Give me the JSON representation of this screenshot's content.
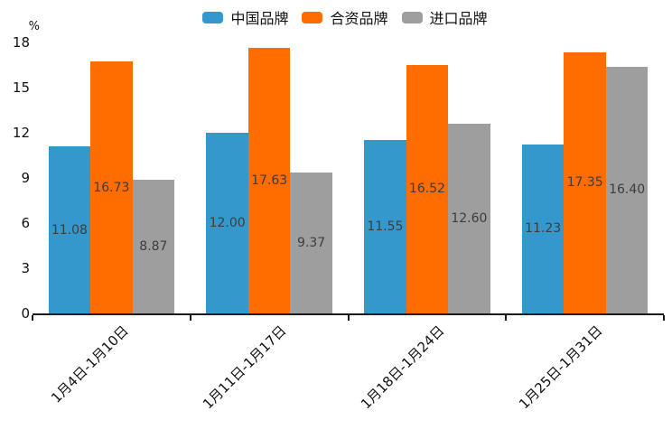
{
  "chart_data": {
    "type": "bar",
    "title": "",
    "unit_label": "%",
    "categories": [
      "1月4日-1月10日",
      "1月11日-1月17日",
      "1月18日-1月24日",
      "1月25日-1月31日"
    ],
    "series": [
      {
        "name": "中国品牌",
        "color": "#3598cd",
        "values": [
          11.08,
          12.0,
          11.55,
          11.23
        ]
      },
      {
        "name": "合资品牌",
        "color": "#ff6c00",
        "values": [
          16.73,
          17.63,
          16.52,
          17.35
        ]
      },
      {
        "name": "进口品牌",
        "color": "#9e9e9e",
        "values": [
          8.87,
          9.37,
          12.6,
          16.4
        ]
      }
    ],
    "ylim": [
      0,
      18
    ],
    "yticks": [
      0,
      3,
      6,
      9,
      12,
      15,
      18
    ],
    "grid": false,
    "legend_position": "top",
    "value_label_decimals": 2,
    "value_label_color": "#3d3d3d",
    "axis_color": "#1a1a1a"
  }
}
